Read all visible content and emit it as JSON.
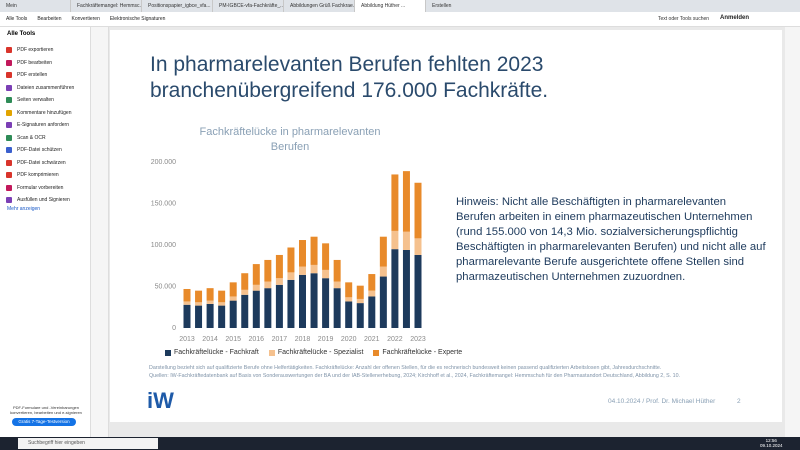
{
  "browser": {
    "tabs": [
      "Mein",
      "Fachkräftemangel: Hemmsc...",
      "Positionspapier_igbce_vfa...",
      "PM-IGBCE-vfa-Fachkräfte_...",
      "Abbildungen Grüß Fachkrae...",
      "Abbildung Hüther ..."
    ],
    "new_tab": "Erstellen"
  },
  "toolbar": {
    "menu": [
      "Alle Tools",
      "Bearbeiten",
      "Konvertieren",
      "Elektronische Signaturen"
    ],
    "search": "Text oder Tools suchen",
    "signin": "Anmelden"
  },
  "sidebar": {
    "title": "Alle Tools",
    "tools": [
      "PDF exportieren",
      "PDF bearbeiten",
      "PDF erstellen",
      "Dateien zusammenführen",
      "Seiten verwalten",
      "Kommentare hinzufügen",
      "E-Signaturen anfordern",
      "Scan & OCR",
      "PDF-Datei schützen",
      "PDF-Datei schwärzen",
      "PDF komprimieren",
      "Formular vorbereiten",
      "Ausfüllen und Signieren"
    ],
    "more": "Mehr anzeigen",
    "promo": "PDF-Formulare und -Vereinbarungen konvertieren, bearbeiten und e-signieren",
    "trial": "Gratis 7-Tage-Testversion"
  },
  "slide": {
    "title": "In pharmarelevanten Berufen fehlten 2023 branchenübergreifend 176.000 Fachkräfte.",
    "note": "Hinweis: Nicht alle Beschäftigten in pharmarelevanten Berufen arbeiten in einem pharmazeutischen Unternehmen (rund 155.000 von 14,3 Mio. sozialversicherungspflichtig Beschäftigten in pharmarelevanten Berufen) und nicht alle auf pharmarelevante Berufe ausgerichtete offene Stellen sind pharmazeutischen Unternehmen zuzuordnen.",
    "footnote": "Darstellung bezieht sich auf qualifizierte Berufe ohne Helfertätigkeiten. Fachkräftelücke: Anzahl der offenen Stellen, für die es rechnerisch bundesweit keinen passend qualifizierten Arbeitslosen gibt, Jahresdurchschnitte.",
    "source": "Quellen: IW-Fachkräftedatenbank auf Basis von Sonderauswertungen der BA und der IAB-Stellenerhebung, 2024; Kirchhoff et al., 2024, Fachkräftemangel: Hemmschuh für den Pharmastandort Deutschland, Abbildung 2, S. 10.",
    "logo": "iW",
    "footer": "04.10.2024 / Prof. Dr. Michael Hüther",
    "page": "2"
  },
  "chart_data": {
    "type": "bar",
    "stacked": true,
    "title": "Fachkräftelücke in pharmarelevanten Berufen",
    "categories": [
      "2013",
      null,
      "2014",
      null,
      "2015",
      null,
      "2016",
      null,
      "2017",
      null,
      "2018",
      null,
      "2019",
      null,
      "2020",
      null,
      "2021",
      null,
      "2022",
      null,
      "2023"
    ],
    "series": [
      {
        "name": "Fachkräftelücke - Fachkraft",
        "color": "#1d3a5c",
        "values": [
          28000,
          27000,
          29000,
          27000,
          33000,
          40000,
          45000,
          48000,
          52000,
          58000,
          64000,
          66000,
          60000,
          48000,
          32000,
          30000,
          38000,
          62000,
          95000,
          94000,
          88000
        ]
      },
      {
        "name": "Fachkräftelücke - Spezialist",
        "color": "#f5c18e",
        "values": [
          4000,
          4000,
          4000,
          4000,
          5000,
          6000,
          7000,
          8000,
          8000,
          9000,
          10000,
          10000,
          10000,
          8000,
          5000,
          5000,
          7000,
          12000,
          22000,
          22000,
          20000
        ]
      },
      {
        "name": "Fachkräftelücke - Experte",
        "color": "#e88a2a",
        "values": [
          15000,
          14000,
          15000,
          14000,
          17000,
          20000,
          25000,
          26000,
          28000,
          30000,
          32000,
          34000,
          32000,
          26000,
          18000,
          16000,
          20000,
          36000,
          68000,
          73000,
          67000
        ]
      }
    ],
    "ylim": [
      0,
      200000
    ],
    "yticks": [
      0,
      {
        "value": 50000,
        "label": "50.000"
      },
      {
        "value": 100000,
        "label": "100.000"
      },
      {
        "value": 150000,
        "label": "150.000"
      },
      {
        "value": 200000,
        "label": "200.000"
      }
    ],
    "grid": false,
    "legend": "bottom"
  },
  "taskbar": {
    "search": "Suchbegriff hier eingeben",
    "time": "12:56",
    "date": "09.10.2024"
  }
}
